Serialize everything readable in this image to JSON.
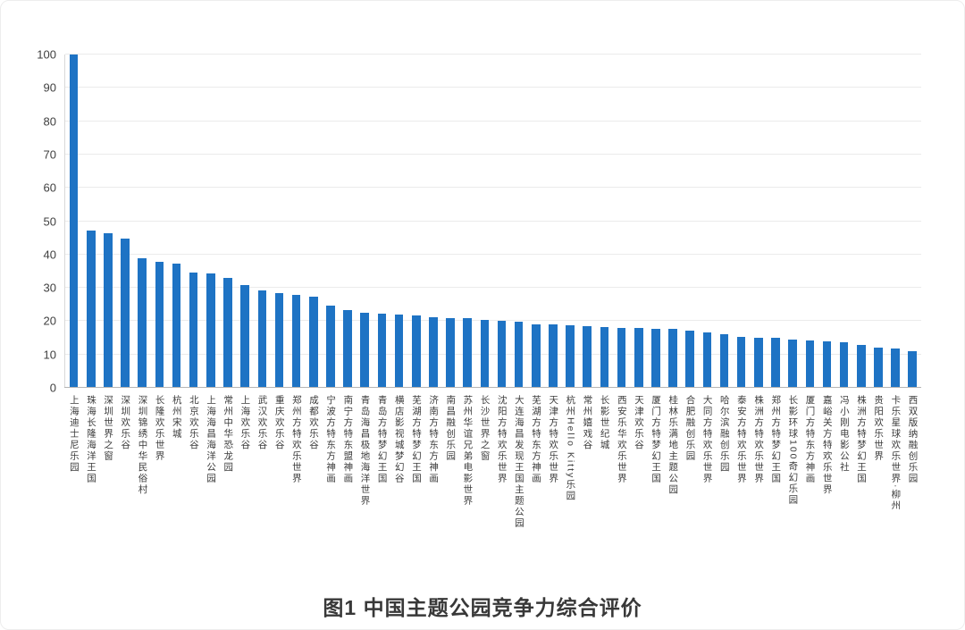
{
  "figure": {
    "caption": "图1 中国主题公园竞争力综合评价"
  },
  "colors": {
    "bar": "#1e73c4",
    "gridline": "#ebebeb",
    "baseline": "#b5b5b5",
    "axis_line": "#d8d8d8",
    "tick_text": "#404040",
    "category_text": "#3c3c3c",
    "caption_text": "#383838",
    "background": "#ffffff"
  },
  "chart_data": {
    "type": "bar",
    "title": "图1 中国主题公园竞争力综合评价",
    "xlabel": "",
    "ylabel": "",
    "ylim": [
      0,
      100
    ],
    "ytick_interval": 10,
    "yticks": [
      0,
      10,
      20,
      30,
      40,
      50,
      60,
      70,
      80,
      90,
      100
    ],
    "grid": true,
    "legend": null,
    "categories": [
      "上海迪士尼乐园",
      "珠海长隆海洋王国",
      "深圳世界之窗",
      "深圳欢乐谷",
      "深圳锦绣中华民俗村",
      "长隆欢乐世界",
      "杭州宋城",
      "北京欢乐谷",
      "上海海昌海洋公园",
      "常州中华恐龙园",
      "上海欢乐谷",
      "武汉欢乐谷",
      "重庆欢乐谷",
      "郑州方特欢乐世界",
      "成都欢乐谷",
      "宁波方特东方神画",
      "南宁方特东盟神画",
      "青岛海昌极地海洋世界",
      "青岛方特梦幻王国",
      "横店影视城梦幻谷",
      "芜湖方特梦幻王国",
      "济南方特东方神画",
      "南昌融创乐园",
      "苏州华谊兄弟电影世界",
      "长沙世界之窗",
      "沈阳方特欢乐世界",
      "大连海昌发现王国主题公园",
      "芜湖方特东方神画",
      "天津方特欢乐世界",
      "杭州Hello Kitty乐园",
      "常州嬉戏谷",
      "长影世纪城",
      "西安乐华欢乐世界",
      "天津欢乐谷",
      "厦门方特梦幻王国",
      "桂林乐满地主题公园",
      "合肥融创乐园",
      "大同方特欢乐世界",
      "哈尔滨融创乐园",
      "泰安方特欢乐世界",
      "株洲方特欢乐世界",
      "郑州方特梦幻王国",
      "长影环球100奇幻乐园",
      "厦门方特东方神画",
      "嘉峪关方特欢乐世界",
      "冯小刚电影公社",
      "株洲方特梦幻王国",
      "贵阳欢乐世界",
      "卡乐星球欢乐世界·柳州",
      "西双版纳融创乐园"
    ],
    "values": [
      100,
      47.3,
      46.4,
      44.7,
      39.0,
      37.9,
      37.4,
      34.5,
      34.2,
      33.0,
      30.9,
      29.2,
      28.4,
      27.9,
      27.3,
      24.8,
      23.3,
      22.6,
      22.2,
      22.1,
      21.6,
      21.3,
      20.9,
      20.8,
      20.4,
      20.1,
      19.8,
      19.1,
      19.0,
      18.8,
      18.5,
      18.3,
      18.1,
      18.0,
      17.7,
      17.6,
      17.2,
      16.7,
      16.0,
      15.4,
      15.1,
      15.0,
      14.5,
      14.1,
      14.0,
      13.8,
      12.9,
      12.1,
      11.7,
      11.0
    ]
  }
}
